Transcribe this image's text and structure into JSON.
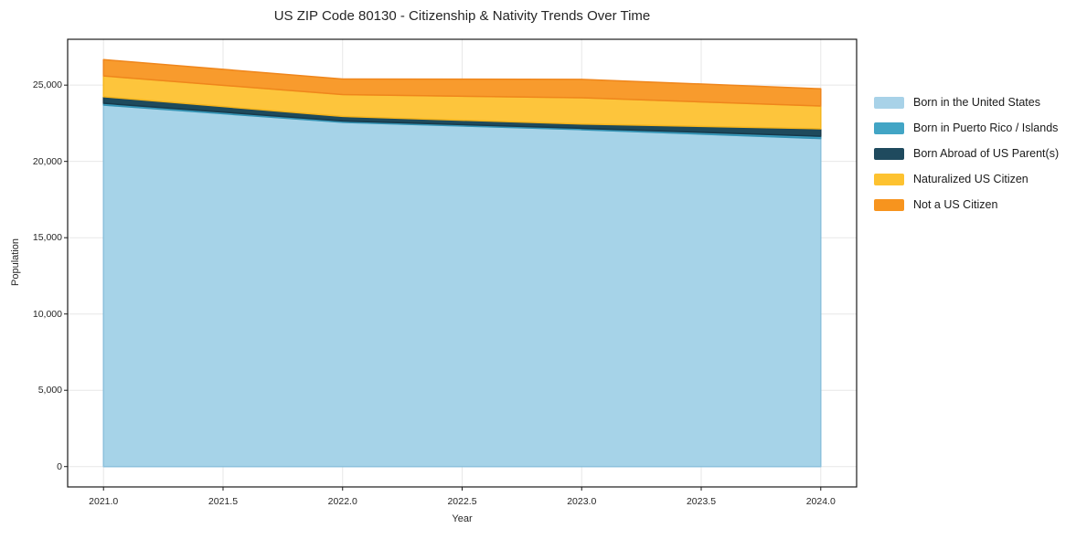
{
  "chart": {
    "title": "US ZIP Code 80130 - Citizenship & Nativity Trends Over Time",
    "xlabel": "Year",
    "ylabel": "Population",
    "background": "#ffffff",
    "grid_color": "#e7e7e7",
    "spine_color": "#1a1a1a"
  },
  "chart_data": {
    "type": "area",
    "stacked": true,
    "title": "US ZIP Code 80130 - Citizenship & Nativity Trends Over Time",
    "xlabel": "Year",
    "ylabel": "Population",
    "x": [
      2021,
      2022,
      2023,
      2024
    ],
    "series": [
      {
        "name": "Born in the United States",
        "color": "#a8d2e8",
        "fill": "#a6d3e8",
        "edge": "#8cc1dc",
        "values": [
          23690,
          22560,
          22080,
          21500
        ]
      },
      {
        "name": "Born in Puerto Rico / Islands",
        "color": "#42a5c5",
        "fill": "#3ea2c3",
        "edge": "#3493b4",
        "values": [
          120,
          90,
          90,
          150
        ]
      },
      {
        "name": "Born Abroad of US Parent(s)",
        "color": "#1f4a5e",
        "fill": "#1e4a5c",
        "edge": "#17394a",
        "values": [
          430,
          300,
          280,
          490
        ]
      },
      {
        "name": "Naturalized US Citizen",
        "color": "#fdc230",
        "fill": "#fdc53c",
        "edge": "#f6b51d",
        "values": [
          1360,
          1430,
          1720,
          1490
        ]
      },
      {
        "name": "Not a US Citizen",
        "color": "#f7941e",
        "fill": "#f89b2d",
        "edge": "#ef861c",
        "values": [
          1070,
          1020,
          1210,
          1130
        ]
      }
    ],
    "totals": [
      26670,
      25400,
      25380,
      24760
    ],
    "xticks": [
      2021.0,
      2021.5,
      2022.0,
      2022.5,
      2023.0,
      2023.5,
      2024.0
    ],
    "xticklabels": [
      "2021.0",
      "2021.5",
      "2022.0",
      "2022.5",
      "2023.0",
      "2023.5",
      "2024.0"
    ],
    "yticks": [
      0,
      5000,
      10000,
      15000,
      20000,
      25000
    ],
    "yticklabels": [
      "0",
      "5,000",
      "10,000",
      "15,000",
      "20,000",
      "25,000"
    ],
    "xlim": [
      2020.85,
      2024.15
    ],
    "ylim": [
      -1334,
      28004
    ],
    "grid": true,
    "legend_position": "right-outside"
  }
}
